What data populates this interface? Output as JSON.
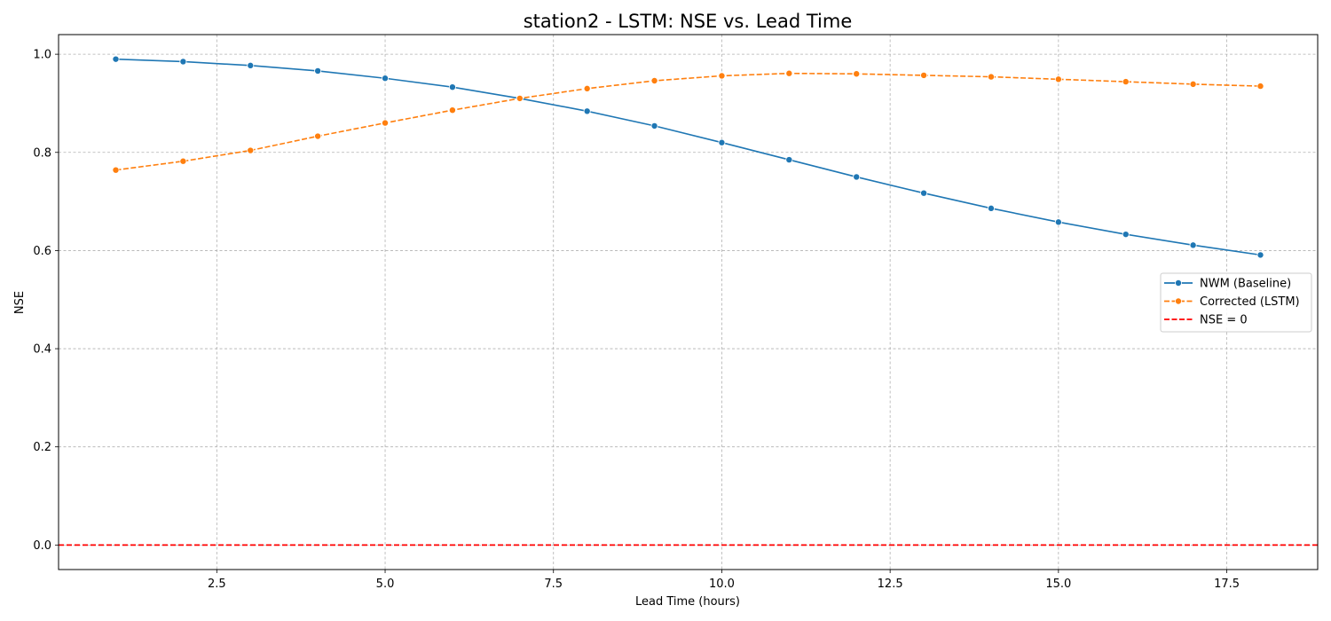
{
  "chart_data": {
    "type": "line",
    "title": "station2 - LSTM: NSE vs. Lead Time",
    "xlabel": "Lead Time (hours)",
    "ylabel": "NSE",
    "xlim": [
      0.15,
      18.85
    ],
    "ylim": [
      -0.05,
      1.04
    ],
    "x_ticks": [
      2.5,
      5.0,
      7.5,
      10.0,
      12.5,
      15.0,
      17.5
    ],
    "x_tick_labels": [
      "2.5",
      "5.0",
      "7.5",
      "10.0",
      "12.5",
      "15.0",
      "17.5"
    ],
    "y_ticks": [
      0.0,
      0.2,
      0.4,
      0.6,
      0.8,
      1.0
    ],
    "y_tick_labels": [
      "0.0",
      "0.2",
      "0.4",
      "0.6",
      "0.8",
      "1.0"
    ],
    "grid": true,
    "legend_position": "center-right",
    "x": [
      1,
      2,
      3,
      4,
      5,
      6,
      7,
      8,
      9,
      10,
      11,
      12,
      13,
      14,
      15,
      16,
      17,
      18
    ],
    "series": [
      {
        "name": "NWM (Baseline)",
        "color": "#1f77b4",
        "style": "solid",
        "marker": "circle",
        "values": [
          0.99,
          0.985,
          0.977,
          0.966,
          0.951,
          0.933,
          0.91,
          0.884,
          0.854,
          0.82,
          0.785,
          0.75,
          0.717,
          0.686,
          0.658,
          0.633,
          0.611,
          0.591
        ]
      },
      {
        "name": "Corrected (LSTM)",
        "color": "#ff7f0e",
        "style": "dashed",
        "marker": "circle",
        "values": [
          0.764,
          0.782,
          0.804,
          0.833,
          0.86,
          0.886,
          0.91,
          0.93,
          0.946,
          0.956,
          0.961,
          0.96,
          0.957,
          0.954,
          0.949,
          0.944,
          0.939,
          0.935
        ]
      }
    ],
    "reference_line": {
      "name": "NSE = 0",
      "y": 0,
      "color": "#ff0000",
      "style": "dashed"
    }
  }
}
